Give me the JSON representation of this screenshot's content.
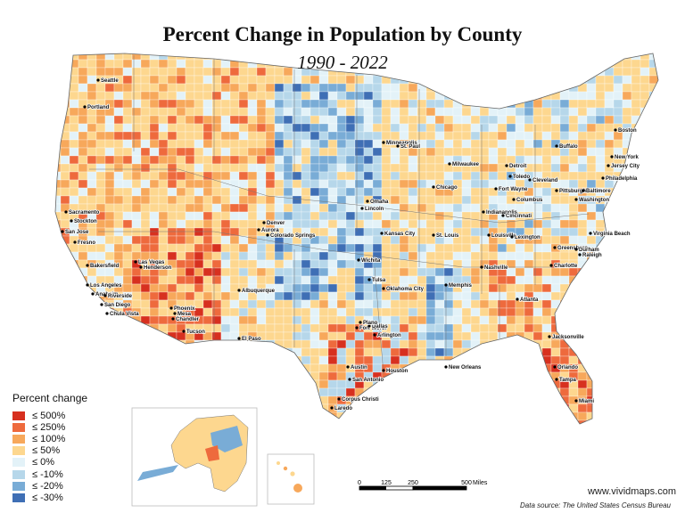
{
  "title": "Percent Change in Population by County",
  "subtitle": "1990 - 2022",
  "legend": {
    "title": "Percent change",
    "items": [
      {
        "label": "≤ 500%",
        "color": "#d7301f"
      },
      {
        "label": "≤ 250%",
        "color": "#ee6a3d"
      },
      {
        "label": "≤ 100%",
        "color": "#f7a85b"
      },
      {
        "label": "≤ 50%",
        "color": "#fdd78f"
      },
      {
        "label": "≤ 0%",
        "color": "#e3f2f8"
      },
      {
        "label": "≤ -10%",
        "color": "#b6d7ea"
      },
      {
        "label": "≤ -20%",
        "color": "#79acd6"
      },
      {
        "label": "≤ -30%",
        "color": "#3f6fb5"
      }
    ]
  },
  "scale": {
    "ticks": [
      "0",
      "125",
      "250",
      "500"
    ],
    "unit": "Miles"
  },
  "website": "www.vividmaps.com",
  "source": "Data source: The United States Census Bureau",
  "cities": [
    {
      "name": "Seattle"
    },
    {
      "name": "Portland"
    },
    {
      "name": "Sacramento"
    },
    {
      "name": "Stockton"
    },
    {
      "name": "San Jose"
    },
    {
      "name": "Fresno"
    },
    {
      "name": "Bakersfield"
    },
    {
      "name": "Los Angeles"
    },
    {
      "name": "Anaheim"
    },
    {
      "name": "Riverside"
    },
    {
      "name": "San Diego"
    },
    {
      "name": "Chula Vista"
    },
    {
      "name": "Las Vegas"
    },
    {
      "name": "Henderson"
    },
    {
      "name": "Phoenix"
    },
    {
      "name": "Mesa"
    },
    {
      "name": "Chandler"
    },
    {
      "name": "Tucson"
    },
    {
      "name": "Albuquerque"
    },
    {
      "name": "El Paso"
    },
    {
      "name": "Denver"
    },
    {
      "name": "Aurora"
    },
    {
      "name": "Colorado Springs"
    },
    {
      "name": "Omaha"
    },
    {
      "name": "Lincoln"
    },
    {
      "name": "Kansas City"
    },
    {
      "name": "Wichita"
    },
    {
      "name": "Tulsa"
    },
    {
      "name": "Oklahoma City"
    },
    {
      "name": "Fort Worth"
    },
    {
      "name": "Dallas"
    },
    {
      "name": "Plano"
    },
    {
      "name": "Arlington"
    },
    {
      "name": "Austin"
    },
    {
      "name": "San Antonio"
    },
    {
      "name": "Houston"
    },
    {
      "name": "Corpus Christi"
    },
    {
      "name": "Laredo"
    },
    {
      "name": "Minneapolis"
    },
    {
      "name": "St. Paul"
    },
    {
      "name": "Milwaukee"
    },
    {
      "name": "Chicago"
    },
    {
      "name": "St. Louis"
    },
    {
      "name": "Memphis"
    },
    {
      "name": "Nashville"
    },
    {
      "name": "New Orleans"
    },
    {
      "name": "Atlanta"
    },
    {
      "name": "Jacksonville"
    },
    {
      "name": "Orlando"
    },
    {
      "name": "Tampa"
    },
    {
      "name": "Miami"
    },
    {
      "name": "Detroit"
    },
    {
      "name": "Toledo"
    },
    {
      "name": "Fort Wayne"
    },
    {
      "name": "Indianapolis"
    },
    {
      "name": "Cincinnati"
    },
    {
      "name": "Columbus"
    },
    {
      "name": "Cleveland"
    },
    {
      "name": "Pittsburgh"
    },
    {
      "name": "Louisville"
    },
    {
      "name": "Lexington"
    },
    {
      "name": "Buffalo"
    },
    {
      "name": "Boston"
    },
    {
      "name": "New York"
    },
    {
      "name": "Jersey City"
    },
    {
      "name": "Philadelphia"
    },
    {
      "name": "Baltimore"
    },
    {
      "name": "Washington"
    },
    {
      "name": "Virginia Beach"
    },
    {
      "name": "Greensboro"
    },
    {
      "name": "Durham"
    },
    {
      "name": "Raleigh"
    },
    {
      "name": "Charlotte"
    }
  ]
}
